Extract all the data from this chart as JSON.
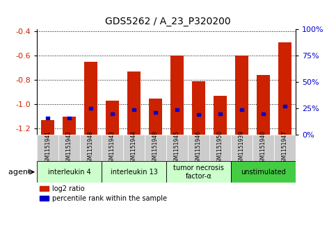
{
  "title": "GDS5262 / A_23_P320200",
  "samples": [
    "GSM1151941",
    "GSM1151942",
    "GSM1151948",
    "GSM1151943",
    "GSM1151944",
    "GSM1151949",
    "GSM1151945",
    "GSM1151946",
    "GSM1151950",
    "GSM1151939",
    "GSM1151940",
    "GSM1151947"
  ],
  "log2_ratio": [
    -1.13,
    -1.1,
    -0.65,
    -0.97,
    -0.73,
    -0.95,
    -0.6,
    -0.81,
    -0.93,
    -0.6,
    -0.76,
    -0.49
  ],
  "percentile_rank": [
    16,
    16,
    25,
    20,
    24,
    21,
    24,
    19,
    20,
    24,
    20,
    27
  ],
  "ylim_left": [
    -1.25,
    -0.38
  ],
  "ylim_right": [
    0,
    100
  ],
  "y_ticks_left": [
    -1.2,
    -1.0,
    -0.8,
    -0.6,
    -0.4
  ],
  "y_ticks_right": [
    0,
    25,
    50,
    75,
    100
  ],
  "agent_groups": [
    {
      "label": "interleukin 4",
      "start": 0,
      "end": 3,
      "color": "#ccffcc"
    },
    {
      "label": "interleukin 13",
      "start": 3,
      "end": 6,
      "color": "#ccffcc"
    },
    {
      "label": "tumor necrosis\nfactor-α",
      "start": 6,
      "end": 9,
      "color": "#ccffcc"
    },
    {
      "label": "unstimulated",
      "start": 9,
      "end": 12,
      "color": "#44cc44"
    }
  ],
  "bar_color": "#cc2200",
  "percentile_color": "#0000cc",
  "bar_width": 0.6,
  "sample_box_color": "#cccccc",
  "legend_items": [
    {
      "color": "#cc2200",
      "label": "log2 ratio"
    },
    {
      "color": "#0000cc",
      "label": "percentile rank within the sample"
    }
  ],
  "axis_label_color_left": "#cc2200",
  "axis_label_color_right": "#0000cc",
  "grid_color": "black",
  "agent_label_fontsize": 7,
  "sample_fontsize": 5.5,
  "title_fontsize": 10
}
